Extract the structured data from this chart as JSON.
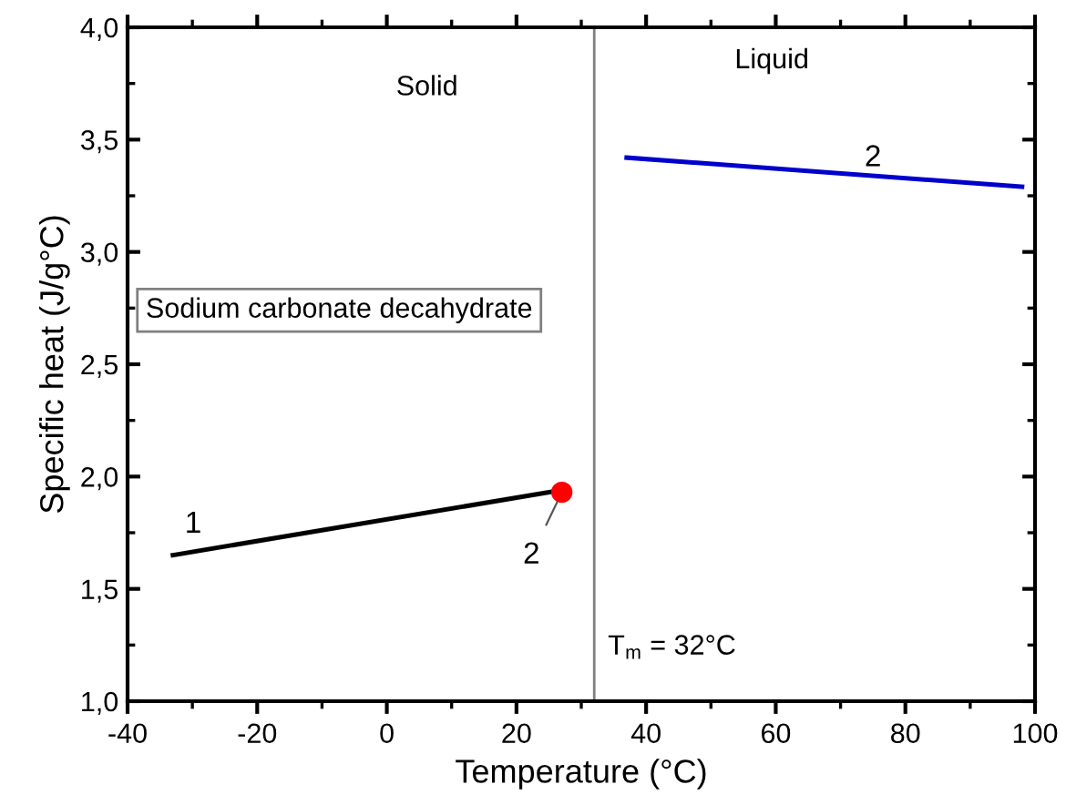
{
  "chart_data": {
    "type": "line",
    "xlabel": "Temperature (°C)",
    "ylabel": "Specific heat (J/g°C)",
    "series": [
      {
        "color": "#000000",
        "x": [
          -33,
          27
        ],
        "values": [
          1.65,
          1.94
        ]
      },
      {
        "type": "scatter",
        "color": "#ff0000",
        "x": [
          27
        ],
        "values": [
          1.93
        ],
        "marker": "circle"
      },
      {
        "color": "#0000cc",
        "x": [
          37,
          98
        ],
        "values": [
          3.42,
          3.29
        ]
      }
    ],
    "xlim": [
      -40,
      100
    ],
    "xticks": [
      -40,
      -20,
      0,
      20,
      40,
      60,
      80,
      100
    ],
    "ylim": [
      1.0,
      4.0
    ],
    "yticks": [
      {
        "value": 1.0,
        "label": "1,0"
      },
      {
        "value": 1.5,
        "label": "1,5"
      },
      {
        "value": 2.0,
        "label": "2,0"
      },
      {
        "value": 2.5,
        "label": "2,5"
      },
      {
        "value": 3.0,
        "label": "3,0"
      },
      {
        "value": 3.5,
        "label": "3,5"
      },
      {
        "value": 4.0,
        "label": "4,0"
      }
    ],
    "ref_lines": [
      {
        "axis": "x",
        "value": 32,
        "label": "T$_{m}$ = 32°C",
        "color": "#808080"
      }
    ],
    "annotations": [
      "Solid",
      "Liquid",
      "Sodium carbonate decahydrate",
      {
        "text": "1",
        "x": -33,
        "y": 1.65
      },
      {
        "text": "2",
        "x": 27,
        "y": 1.93
      },
      {
        "text": "2",
        "x": 75,
        "y": 3.36
      }
    ],
    "grid": false,
    "legend": false
  }
}
